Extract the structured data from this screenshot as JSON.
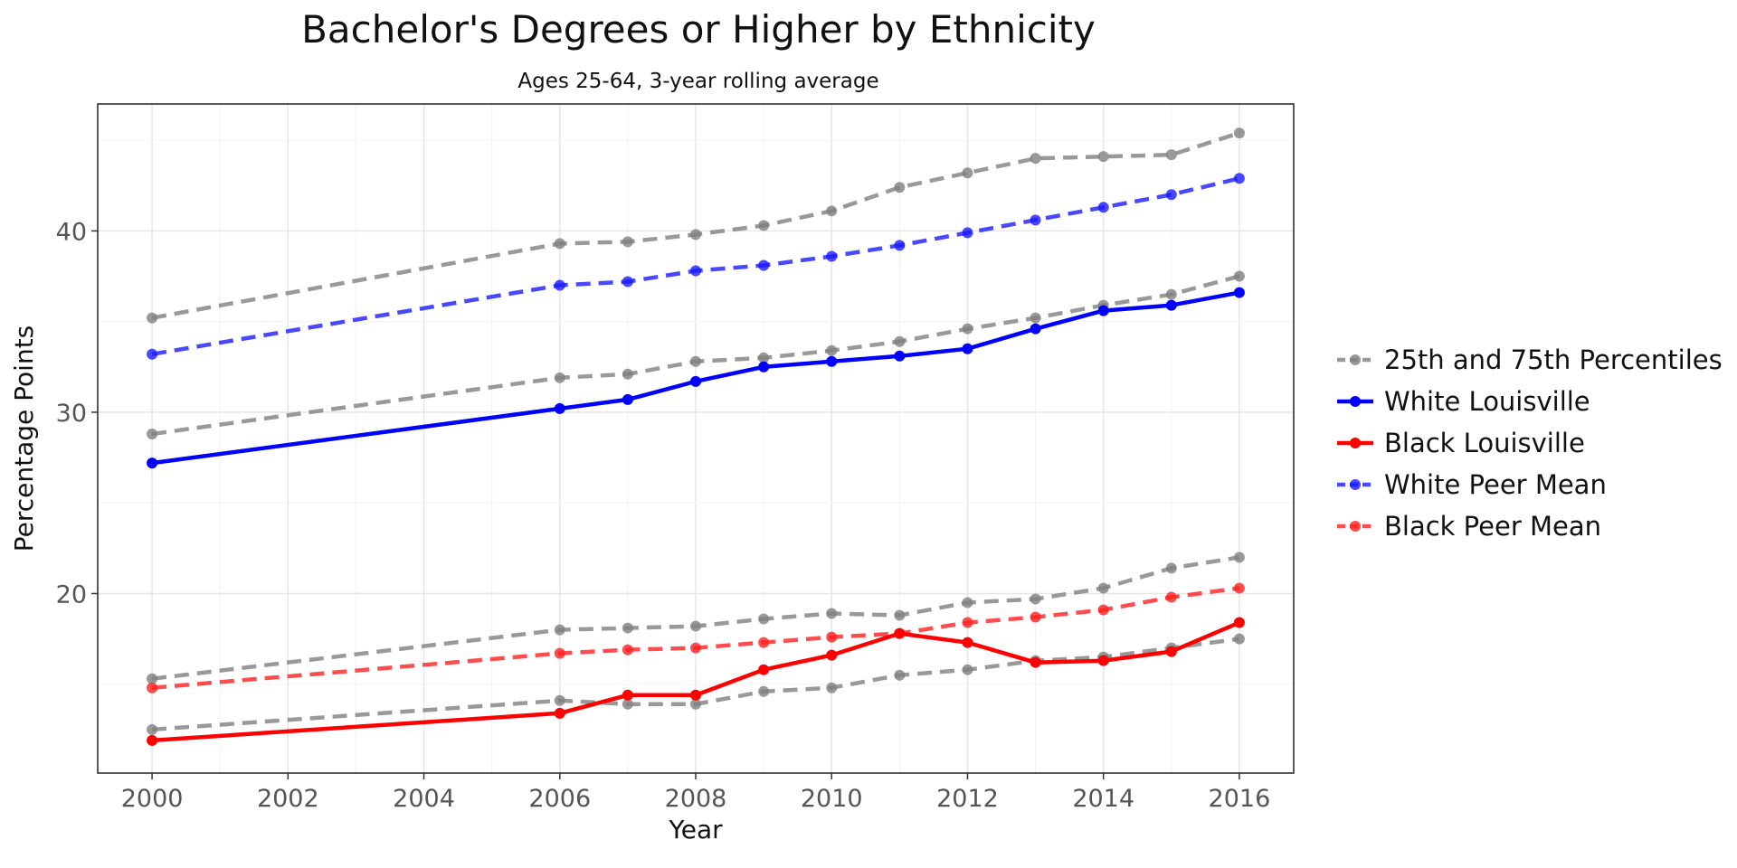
{
  "chart_data": {
    "type": "line",
    "title": "Bachelor's Degrees or Higher by Ethnicity",
    "subtitle": "Ages 25-64, 3-year rolling average",
    "xlabel": "Year",
    "ylabel": "Percentage Points",
    "x_ticks": [
      2000,
      2002,
      2004,
      2006,
      2008,
      2010,
      2012,
      2014,
      2016
    ],
    "y_ticks": [
      20,
      30,
      40
    ],
    "xlim": [
      1999.2,
      2016.8
    ],
    "ylim": [
      10.1,
      47.0
    ],
    "grid": true,
    "legend_position": "right",
    "x": [
      2000,
      2006,
      2007,
      2008,
      2009,
      2010,
      2011,
      2012,
      2013,
      2014,
      2015,
      2016
    ],
    "series": [
      {
        "name": "25th and 75th Percentiles",
        "key": "p75",
        "color": "#808080",
        "style": "dashed",
        "values": [
          35.2,
          39.3,
          39.4,
          39.8,
          40.3,
          41.1,
          42.4,
          43.2,
          44.0,
          44.1,
          44.2,
          45.4
        ]
      },
      {
        "name": "25th and 75th Percentiles",
        "key": "p25w",
        "color": "#808080",
        "style": "dashed",
        "values": [
          28.8,
          31.9,
          32.1,
          32.8,
          33.0,
          33.4,
          33.9,
          34.6,
          35.2,
          35.9,
          36.5,
          37.5
        ]
      },
      {
        "name": "25th and 75th Percentiles",
        "key": "p75b",
        "color": "#808080",
        "style": "dashed",
        "values": [
          15.3,
          18.0,
          18.1,
          18.2,
          18.6,
          18.9,
          18.8,
          19.5,
          19.7,
          20.3,
          21.4,
          22.0
        ]
      },
      {
        "name": "25th and 75th Percentiles",
        "key": "p25b",
        "color": "#808080",
        "style": "dashed",
        "values": [
          12.5,
          14.1,
          13.9,
          13.9,
          14.6,
          14.8,
          15.5,
          15.8,
          16.3,
          16.5,
          17.0,
          17.5
        ]
      },
      {
        "name": "White Peer Mean",
        "key": "wpm",
        "color": "#1a1aff",
        "style": "dashed",
        "values": [
          33.2,
          37.0,
          37.2,
          37.8,
          38.1,
          38.6,
          39.2,
          39.9,
          40.6,
          41.3,
          42.0,
          42.9
        ]
      },
      {
        "name": "Black Peer Mean",
        "key": "bpm",
        "color": "#ff2020",
        "style": "dashed",
        "values": [
          14.8,
          16.7,
          16.9,
          17.0,
          17.3,
          17.6,
          17.8,
          18.4,
          18.7,
          19.1,
          19.8,
          20.3
        ]
      },
      {
        "name": "White Louisville",
        "key": "wl",
        "color": "#0000ff",
        "style": "solid",
        "values": [
          27.2,
          30.2,
          30.7,
          31.7,
          32.5,
          32.8,
          33.1,
          33.5,
          34.6,
          35.6,
          35.9,
          36.6
        ]
      },
      {
        "name": "Black Louisville",
        "key": "bl",
        "color": "#ff0000",
        "style": "solid",
        "values": [
          11.9,
          13.4,
          14.4,
          14.4,
          15.8,
          16.6,
          17.8,
          17.3,
          16.2,
          16.3,
          16.8,
          18.4
        ]
      }
    ],
    "legend": [
      {
        "label": "25th and 75th Percentiles",
        "color": "#808080",
        "style": "dashed"
      },
      {
        "label": "White Louisville",
        "color": "#0000ff",
        "style": "solid"
      },
      {
        "label": "Black Louisville",
        "color": "#ff0000",
        "style": "solid"
      },
      {
        "label": "White Peer Mean",
        "color": "#1a1aff",
        "style": "dashed"
      },
      {
        "label": "Black Peer Mean",
        "color": "#ff2020",
        "style": "dashed"
      }
    ]
  }
}
